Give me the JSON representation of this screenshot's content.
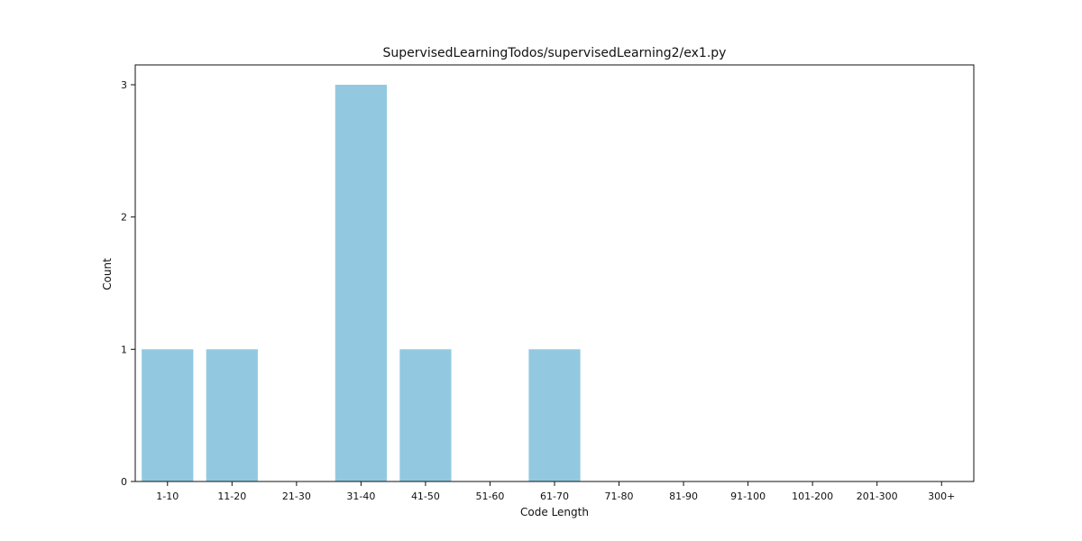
{
  "chart_data": {
    "type": "bar",
    "title": "SupervisedLearningTodos/supervisedLearning2/ex1.py",
    "xlabel": "Code Length",
    "ylabel": "Count",
    "categories": [
      "1-10",
      "11-20",
      "21-30",
      "31-40",
      "41-50",
      "51-60",
      "61-70",
      "71-80",
      "81-90",
      "91-100",
      "101-200",
      "201-300",
      "300+"
    ],
    "values": [
      1,
      1,
      0,
      3,
      1,
      0,
      1,
      0,
      0,
      0,
      0,
      0,
      0
    ],
    "ylim": [
      0,
      3.15
    ],
    "yticks": [
      0,
      1,
      2,
      3
    ],
    "grid": false,
    "bar_color": "#92c9e0"
  }
}
